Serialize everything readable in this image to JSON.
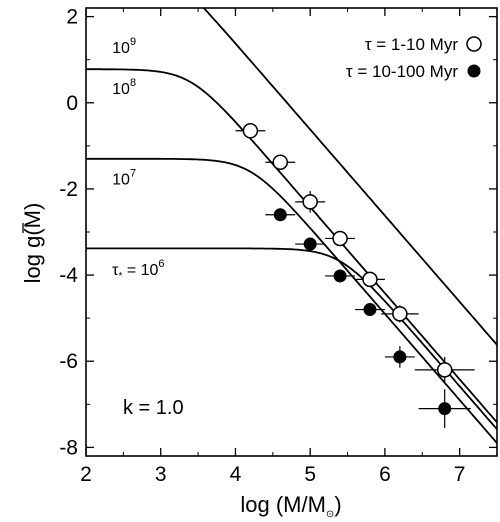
{
  "chart_data": {
    "type": "line",
    "title": "",
    "xlabel_main": "log (M/M",
    "xlabel_sub": "⊙",
    "xlabel_close": ")",
    "ylabel_main": "log g",
    "ylabel_close": "(M)",
    "xlim": [
      2,
      7.5
    ],
    "ylim": [
      -8.2,
      2.2
    ],
    "xticks": [
      2,
      3,
      4,
      5,
      6,
      7
    ],
    "yticks": [
      2,
      0,
      -2,
      -4,
      -6,
      -8
    ],
    "xtick_labels": [
      "2",
      "3",
      "4",
      "5",
      "6",
      "7"
    ],
    "ytick_labels": [
      "2",
      "0",
      "-2",
      "-4",
      "-6",
      "-8"
    ],
    "grid": false,
    "legend_position": "top-right",
    "k_label": "k = 1.0",
    "curves": [
      {
        "label_base": "10",
        "label_exp": "9",
        "label_prefix": "",
        "label_x": 2.35,
        "label_y": 1.15,
        "plateau": 3.38,
        "knee": 3.0
      },
      {
        "label_base": "10",
        "label_exp": "8",
        "label_prefix": "",
        "label_x": 2.35,
        "label_y": 0.2,
        "plateau": 0.78,
        "knee": 3.4
      },
      {
        "label_base": "10",
        "label_exp": "7",
        "label_prefix": "",
        "label_x": 2.35,
        "label_y": -1.9,
        "plateau": -1.3,
        "knee": 4.2
      },
      {
        "label_base": "10",
        "label_exp": "6",
        "label_prefix": "τ",
        "label_sub": "*",
        "label_eq": " = ",
        "label_x": 2.35,
        "label_y": -4.0,
        "plateau": -3.38,
        "knee": 5.4
      }
    ],
    "series": [
      {
        "name": "τ = 1-10 Myr",
        "marker": "open-circle",
        "points": [
          {
            "x": 4.2,
            "y": -0.65,
            "xerr": 0.2,
            "yerr": 0.0
          },
          {
            "x": 4.6,
            "y": -1.38,
            "xerr": 0.2,
            "yerr": 0.1
          },
          {
            "x": 5.0,
            "y": -2.3,
            "xerr": 0.2,
            "yerr": 0.25
          },
          {
            "x": 5.4,
            "y": -3.15,
            "xerr": 0.2,
            "yerr": 0.1
          },
          {
            "x": 5.8,
            "y": -4.1,
            "xerr": 0.2,
            "yerr": 0.15
          },
          {
            "x": 6.2,
            "y": -4.9,
            "xerr": 0.25,
            "yerr": 0.2
          },
          {
            "x": 6.8,
            "y": -6.2,
            "xerr": 0.4,
            "yerr": 0.3
          }
        ]
      },
      {
        "name": "τ = 10-100 Myr",
        "marker": "filled-circle",
        "points": [
          {
            "x": 4.6,
            "y": -2.6,
            "xerr": 0.2,
            "yerr": 0.0
          },
          {
            "x": 5.0,
            "y": -3.28,
            "xerr": 0.2,
            "yerr": 0.0
          },
          {
            "x": 5.4,
            "y": -4.02,
            "xerr": 0.2,
            "yerr": 0.0
          },
          {
            "x": 5.8,
            "y": -4.8,
            "xerr": 0.2,
            "yerr": 0.0
          },
          {
            "x": 6.2,
            "y": -5.9,
            "xerr": 0.2,
            "yerr": 0.25
          },
          {
            "x": 6.8,
            "y": -7.1,
            "xerr": 0.35,
            "yerr": 0.45
          }
        ]
      }
    ]
  }
}
